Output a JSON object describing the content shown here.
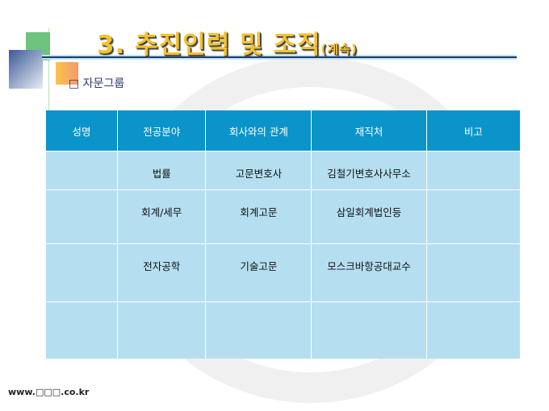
{
  "title": {
    "main": "3. 추진인력 및 조직",
    "suffix": "(계속)"
  },
  "subtitle": "□ 자문그룹",
  "table": {
    "headers": [
      "성명",
      "전공분야",
      "회사와의 관계",
      "재직처",
      "비고"
    ],
    "rows": [
      [
        "",
        "법률",
        "고문변호사",
        "김철기변호사사무소",
        ""
      ],
      [
        "",
        "회계/세무",
        "회계고문",
        "삼일회계법인등",
        ""
      ],
      [
        "",
        "전자공학",
        "기술고문",
        "모스크바항공대교수",
        ""
      ],
      [
        "",
        "",
        "",
        "",
        ""
      ]
    ]
  },
  "footer": "www.□□□.co.kr"
}
